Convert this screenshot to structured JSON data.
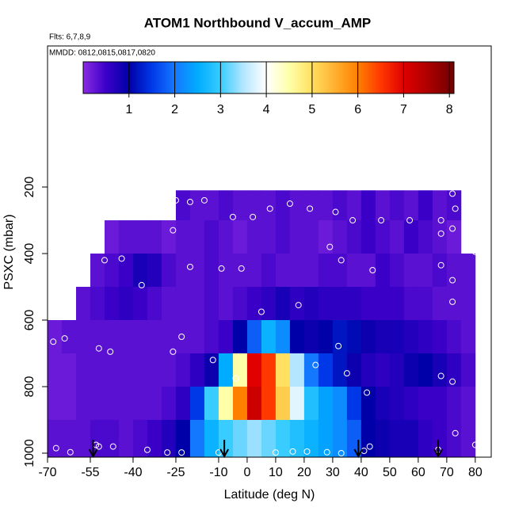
{
  "chart_data": {
    "type": "heatmap",
    "title": "ATOM1 Northbound V_accum_AMP",
    "annotations": [
      "Flts: 6,7,8,9",
      "MMDD: 0812,0815,0817,0820"
    ],
    "x_label": "Latitude (deg N)",
    "y_label": "PSXC (mbar)",
    "xlim": [
      -70,
      85.6
    ],
    "ylim": [
      1012,
      -224
    ],
    "xticks": [
      -70,
      -55,
      -40,
      -25,
      -10,
      0,
      10,
      20,
      30,
      40,
      50,
      60,
      70,
      80
    ],
    "yticks": [
      200,
      400,
      600,
      800,
      1000
    ],
    "clim": [
      0,
      8.1
    ],
    "colorbar_ticks": [
      1,
      2,
      3,
      4,
      5,
      6,
      7,
      8
    ],
    "colorscale": [
      [
        0,
        "#8a2be2"
      ],
      [
        0.5,
        "#3a00c8"
      ],
      [
        1,
        "#0000a8"
      ],
      [
        1.5,
        "#0038e8"
      ],
      [
        2,
        "#1478ff"
      ],
      [
        2.5,
        "#00acff"
      ],
      [
        3,
        "#38ccff"
      ],
      [
        3.5,
        "#b4e6ff"
      ],
      [
        4,
        "#ffffff"
      ],
      [
        4.5,
        "#ffffa8"
      ],
      [
        5,
        "#ffe060"
      ],
      [
        5.5,
        "#ffb030"
      ],
      [
        6,
        "#ff8000"
      ],
      [
        6.5,
        "#ff3800"
      ],
      [
        7,
        "#e00000"
      ],
      [
        7.5,
        "#b00000"
      ],
      [
        8,
        "#7a0000"
      ]
    ],
    "x_edges": [
      -70,
      -65,
      -60,
      -55,
      -50,
      -45,
      -40,
      -35,
      -30,
      -25,
      -20,
      -15,
      -10,
      -5,
      0,
      5,
      10,
      15,
      20,
      25,
      30,
      35,
      40,
      45,
      50,
      55,
      60,
      65,
      70,
      75,
      80
    ],
    "y_edges": [
      210,
      300,
      400,
      500,
      600,
      700,
      800,
      900,
      1012
    ],
    "z": [
      [
        null,
        null,
        null,
        null,
        null,
        null,
        null,
        null,
        null,
        0.4,
        0.3,
        0.3,
        0.4,
        0.3,
        0.3,
        0.3,
        0.4,
        0.3,
        0.3,
        0.3,
        0.4,
        0.3,
        0.5,
        0.3,
        0.4,
        0.3,
        0.5,
        0.3,
        0.4,
        null
      ],
      [
        null,
        null,
        null,
        null,
        0.2,
        0.3,
        0.3,
        0.3,
        0.2,
        0.3,
        0.3,
        0.4,
        0.3,
        0.2,
        0.3,
        0.3,
        0.4,
        0.3,
        0.3,
        0.2,
        0.3,
        0.4,
        0.5,
        0.4,
        0.3,
        0.5,
        0.4,
        0.3,
        0.2,
        null
      ],
      [
        null,
        null,
        null,
        0.3,
        0.4,
        0.5,
        0.8,
        0.7,
        0.4,
        0.3,
        0.3,
        0.4,
        0.3,
        0.3,
        0.3,
        0.4,
        0.3,
        0.3,
        0.3,
        0.4,
        0.4,
        0.3,
        0.3,
        0.5,
        0.4,
        0.3,
        0.3,
        0.4,
        0.3,
        0.3
      ],
      [
        null,
        null,
        0.3,
        0.4,
        0.5,
        0.6,
        0.5,
        0.4,
        0.3,
        0.3,
        0.3,
        0.4,
        0.3,
        0.4,
        0.5,
        0.6,
        0.8,
        0.6,
        0.7,
        0.6,
        0.6,
        0.6,
        0.5,
        0.5,
        0.5,
        0.4,
        0.4,
        0.3,
        0.3,
        0.3
      ],
      [
        0.2,
        0.3,
        0.3,
        0.3,
        0.3,
        0.3,
        0.3,
        0.3,
        0.3,
        0.3,
        0.3,
        0.4,
        0.5,
        1.0,
        1.8,
        2.6,
        2.2,
        1.0,
        0.9,
        1.0,
        1.2,
        1.1,
        0.9,
        0.8,
        0.8,
        0.7,
        0.6,
        0.5,
        0.4,
        0.3
      ],
      [
        0.2,
        0.2,
        0.3,
        0.3,
        0.3,
        0.3,
        0.3,
        0.3,
        0.3,
        0.4,
        0.6,
        0.9,
        2.5,
        4.5,
        7.0,
        6.5,
        5.0,
        3.5,
        2.0,
        1.5,
        1.2,
        0.9,
        0.7,
        0.6,
        0.7,
        0.9,
        1.0,
        0.8,
        0.6,
        0.4
      ],
      [
        0.2,
        0.2,
        0.3,
        0.3,
        0.3,
        0.3,
        0.3,
        0.3,
        0.4,
        0.6,
        1.5,
        3.0,
        4.5,
        6.0,
        7.2,
        6.5,
        5.2,
        3.8,
        2.8,
        2.4,
        2.2,
        1.5,
        1.0,
        0.8,
        0.7,
        0.6,
        0.5,
        0.5,
        0.4,
        0.3
      ],
      [
        0.3,
        0.3,
        0.3,
        0.4,
        0.4,
        0.3,
        0.4,
        0.5,
        0.7,
        1.0,
        2.0,
        2.6,
        3.0,
        3.2,
        3.4,
        3.2,
        3.0,
        2.8,
        2.6,
        2.4,
        2.2,
        1.8,
        1.0,
        0.9,
        0.8,
        0.8,
        0.6,
        0.5,
        0.4,
        0.3
      ]
    ],
    "points": {
      "lat": [
        -25,
        -20,
        -15,
        -29,
        -44,
        -39,
        -53,
        -26,
        -5,
        2,
        8,
        15,
        22,
        31,
        37,
        47,
        57,
        68,
        72,
        73,
        72,
        68,
        80,
        29,
        33,
        -44,
        -50,
        -37,
        -9,
        -20,
        -2,
        44,
        68,
        72,
        72,
        18,
        5,
        -68,
        -64,
        -52,
        -48,
        -26,
        -23,
        -12,
        32,
        24,
        -4,
        35,
        42,
        68,
        72,
        73,
        80,
        67,
        -67,
        -62,
        -52,
        -47,
        -35,
        -28,
        -23,
        -10,
        10,
        16,
        21,
        28,
        33,
        41,
        43,
        -53
      ],
      "pressure": [
        240,
        245,
        240,
        260,
        275,
        275,
        300,
        330,
        290,
        290,
        265,
        250,
        265,
        275,
        300,
        300,
        300,
        300,
        220,
        265,
        325,
        340,
        395,
        380,
        420,
        415,
        420,
        495,
        445,
        440,
        445,
        450,
        435,
        480,
        545,
        555,
        575,
        665,
        655,
        685,
        695,
        695,
        650,
        720,
        678,
        735,
        775,
        760,
        818,
        768,
        785,
        940,
        975,
        990,
        985,
        997,
        980,
        980,
        990,
        998,
        998,
        998,
        998,
        995,
        995,
        997,
        1000,
        993,
        980,
        975
      ]
    },
    "arrows": [
      -54,
      -8,
      39,
      67
    ]
  }
}
